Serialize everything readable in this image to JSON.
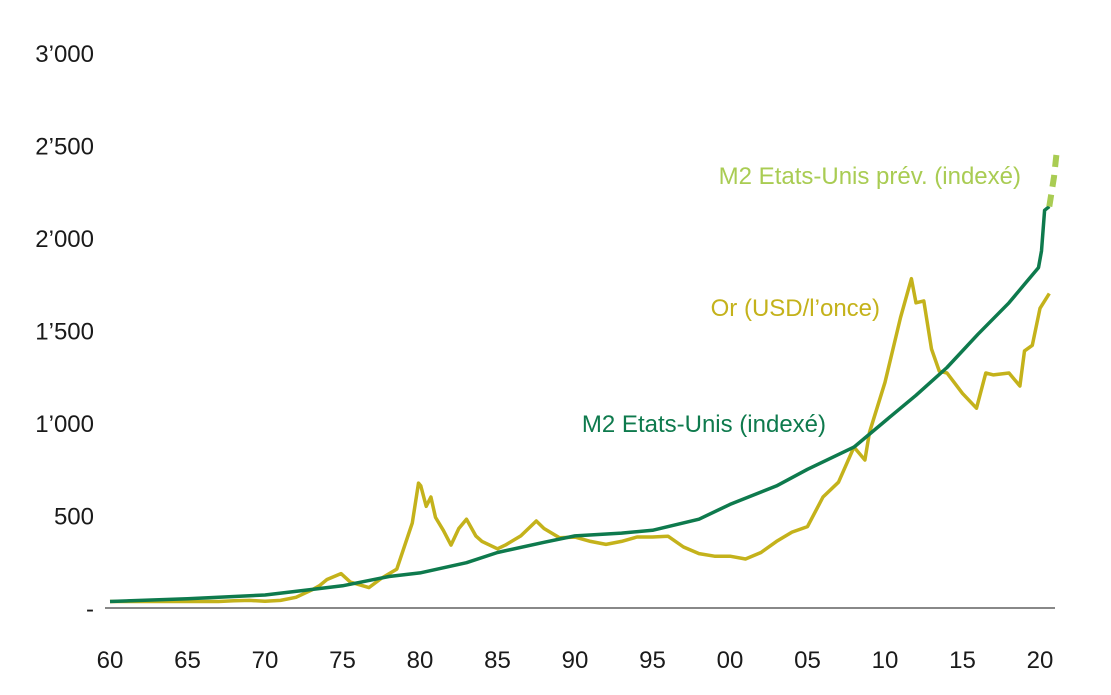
{
  "chart_data": {
    "type": "line",
    "title": "",
    "xlabel": "",
    "ylabel": "",
    "xlim": [
      1960,
      2021
    ],
    "ylim": [
      0,
      3000
    ],
    "x_tick_labels": [
      "60",
      "65",
      "70",
      "75",
      "80",
      "85",
      "90",
      "95",
      "00",
      "05",
      "10",
      "15",
      "20"
    ],
    "x_tick_values": [
      1960,
      1965,
      1970,
      1975,
      1980,
      1985,
      1990,
      1995,
      2000,
      2005,
      2010,
      2015,
      2020
    ],
    "y_tick_labels": [
      "-",
      "500",
      "1’000",
      "1’500",
      "2’000",
      "2’500",
      "3’000"
    ],
    "y_tick_values": [
      0,
      500,
      1000,
      1500,
      2000,
      2500,
      3000
    ],
    "grid": false,
    "colors": {
      "gold": "#c4b21b",
      "m2": "#0e7a4d",
      "m2_forecast": "#a9cc53",
      "axis": "#888888"
    },
    "series": [
      {
        "name": "Or (USD/l’once)",
        "x": [
          1960,
          1967,
          1968,
          1969,
          1970,
          1971,
          1972,
          1973,
          1973.5,
          1974,
          1974.9,
          1975.5,
          1976.7,
          1977.5,
          1978.5,
          1979.5,
          1979.9,
          1980.05,
          1980.4,
          1980.7,
          1981,
          1981.5,
          1982,
          1982.5,
          1983,
          1983.6,
          1984,
          1985,
          1985.5,
          1986.5,
          1987.5,
          1988,
          1989,
          1990,
          1991,
          1992,
          1993,
          1994,
          1995,
          1996,
          1997,
          1998,
          1999,
          2000,
          2001,
          2002,
          2003,
          2004,
          2005,
          2006,
          2007,
          2008,
          2008.7,
          2009,
          2010,
          2011,
          2011.7,
          2012,
          2012.5,
          2013,
          2013.5,
          2014,
          2015,
          2015.9,
          2016.5,
          2017,
          2018,
          2018.7,
          2019,
          2019.5,
          2020,
          2020.6
        ],
        "y": [
          35,
          35,
          39,
          41,
          36,
          41,
          58,
          97,
          120,
          154,
          186,
          140,
          110,
          160,
          210,
          460,
          675,
          660,
          550,
          600,
          490,
          420,
          340,
          430,
          480,
          390,
          360,
          320,
          340,
          390,
          470,
          430,
          380,
          383,
          360,
          344,
          360,
          384,
          384,
          388,
          330,
          294,
          280,
          280,
          265,
          300,
          360,
          410,
          440,
          600,
          680,
          870,
          800,
          950,
          1220,
          1570,
          1780,
          1650,
          1660,
          1400,
          1280,
          1270,
          1160,
          1080,
          1270,
          1260,
          1270,
          1200,
          1390,
          1420,
          1620,
          1700
        ]
      },
      {
        "name": "M2 Etats-Unis (indexé)",
        "x": [
          1960,
          1965,
          1970,
          1973,
          1975,
          1978,
          1980,
          1983,
          1985,
          1988,
          1990,
          1993,
          1995,
          1998,
          2000,
          2003,
          2005,
          2008,
          2010,
          2012,
          2014,
          2016,
          2018,
          2019,
          2019.9,
          2020.1,
          2020.3,
          2020.6
        ],
        "y": [
          35,
          50,
          70,
          100,
          120,
          170,
          190,
          245,
          300,
          355,
          390,
          405,
          420,
          480,
          560,
          660,
          750,
          870,
          1010,
          1150,
          1300,
          1480,
          1650,
          1750,
          1840,
          1930,
          2150,
          2170
        ]
      },
      {
        "name": "M2 Etats-Unis prév. (indexé)",
        "x": [
          2020.6,
          2020.9,
          2021.1
        ],
        "y": [
          2170,
          2330,
          2480
        ]
      }
    ]
  }
}
